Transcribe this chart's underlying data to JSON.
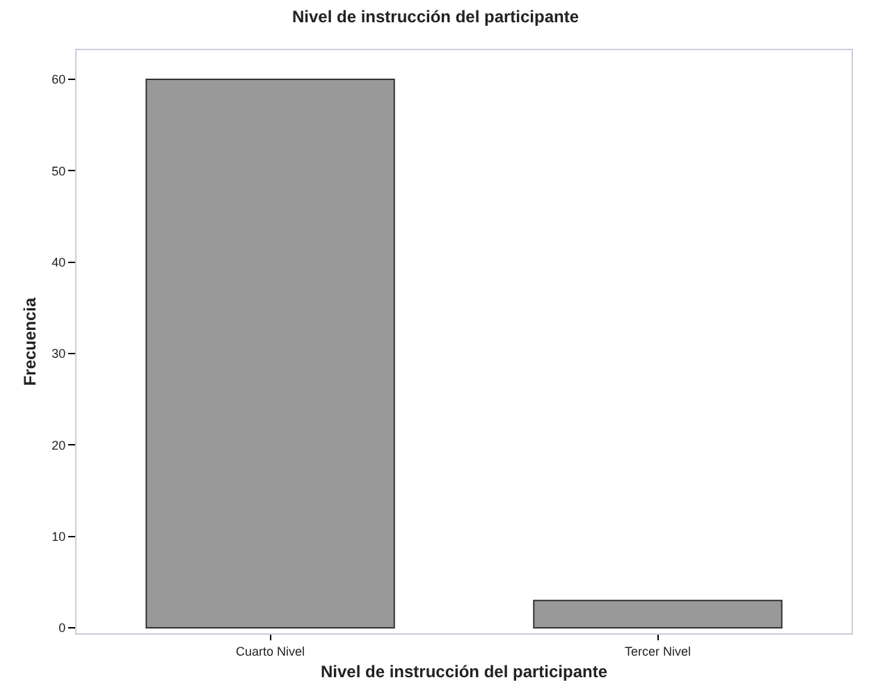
{
  "chart_data": {
    "type": "bar",
    "title": "Nivel de instrucción del participante",
    "xlabel": "Nivel de instrucción del participante",
    "ylabel": "Frecuencia",
    "categories": [
      "Cuarto Nivel",
      "Tercer Nivel"
    ],
    "values": [
      60,
      3
    ],
    "color": "#999999",
    "ylim": [
      -0.6,
      63.2
    ],
    "yticks": [
      0,
      10,
      20,
      30,
      40,
      50,
      60
    ]
  }
}
